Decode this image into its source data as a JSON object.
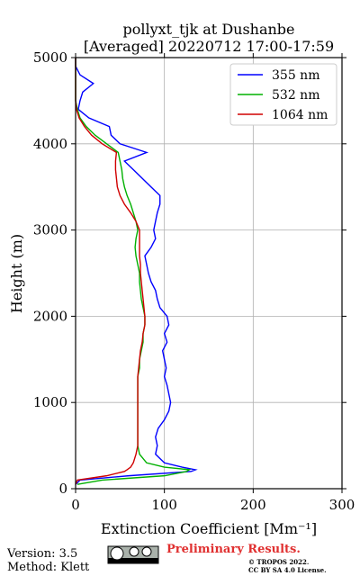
{
  "chart_data": {
    "type": "line",
    "title": [
      "pollyxt_tjk at Dushanbe",
      "[Averaged] 20220712 17:00-17:59"
    ],
    "x_label": "Extinction Coefficient [Mm⁻¹]",
    "y_label": "Height (m)",
    "y": [
      50,
      100,
      150,
      200,
      220,
      250,
      300,
      400,
      500,
      600,
      700,
      800,
      900,
      1000,
      1100,
      1200,
      1300,
      1400,
      1500,
      1600,
      1700,
      1800,
      1900,
      2000,
      2100,
      2200,
      2300,
      2400,
      2500,
      2600,
      2700,
      2800,
      2900,
      3000,
      3100,
      3200,
      3300,
      3400,
      3500,
      3600,
      3700,
      3800,
      3900,
      4000,
      4100,
      4200,
      4300,
      4400,
      4500,
      4600,
      4700,
      4800,
      4900,
      5000
    ],
    "series": [
      {
        "name": "355 nm",
        "color": "#0000ff",
        "values": [
          0,
          5,
          60,
          130,
          135,
          120,
          100,
          90,
          92,
          90,
          93,
          100,
          105,
          107,
          105,
          103,
          100,
          102,
          100,
          98,
          103,
          100,
          105,
          103,
          95,
          92,
          90,
          85,
          82,
          80,
          78,
          85,
          90,
          88,
          90,
          92,
          95,
          95,
          85,
          75,
          65,
          55,
          80,
          50,
          40,
          38,
          15,
          3,
          5,
          8,
          20,
          5,
          0,
          0
        ]
      },
      {
        "name": "532 nm",
        "color": "#00b000",
        "values": [
          2,
          30,
          100,
          125,
          128,
          100,
          80,
          72,
          70,
          70,
          70,
          70,
          70,
          70,
          70,
          70,
          70,
          72,
          72,
          74,
          76,
          76,
          78,
          78,
          76,
          74,
          73,
          72,
          72,
          70,
          68,
          67,
          68,
          70,
          68,
          65,
          62,
          58,
          55,
          53,
          52,
          50,
          48,
          35,
          22,
          12,
          5,
          2,
          0,
          0,
          0,
          0,
          0,
          0
        ]
      },
      {
        "name": "1064 nm",
        "color": "#d00000",
        "values": [
          0,
          2,
          35,
          55,
          58,
          62,
          65,
          68,
          70,
          70,
          70,
          70,
          70,
          70,
          70,
          70,
          70,
          71,
          72,
          73,
          75,
          76,
          78,
          78,
          77,
          76,
          75,
          74,
          73,
          73,
          72,
          72,
          72,
          72,
          68,
          62,
          55,
          50,
          47,
          46,
          45,
          45,
          46,
          30,
          18,
          10,
          4,
          1,
          0,
          0,
          0,
          0,
          0,
          0
        ]
      }
    ],
    "xlim": [
      0,
      300
    ],
    "xticks": [
      0,
      100,
      200,
      300
    ],
    "ylim": [
      0,
      5000
    ],
    "yticks": [
      0,
      1000,
      2000,
      3000,
      4000,
      5000
    ],
    "grid": true,
    "legend": "upper right",
    "footer": {
      "version": "Version: 3.5",
      "method": "Method: Klett",
      "status": "Preliminary Results.",
      "copyright": [
        "© TROPOS 2022.",
        "CC BY SA 4.0 License."
      ]
    }
  }
}
